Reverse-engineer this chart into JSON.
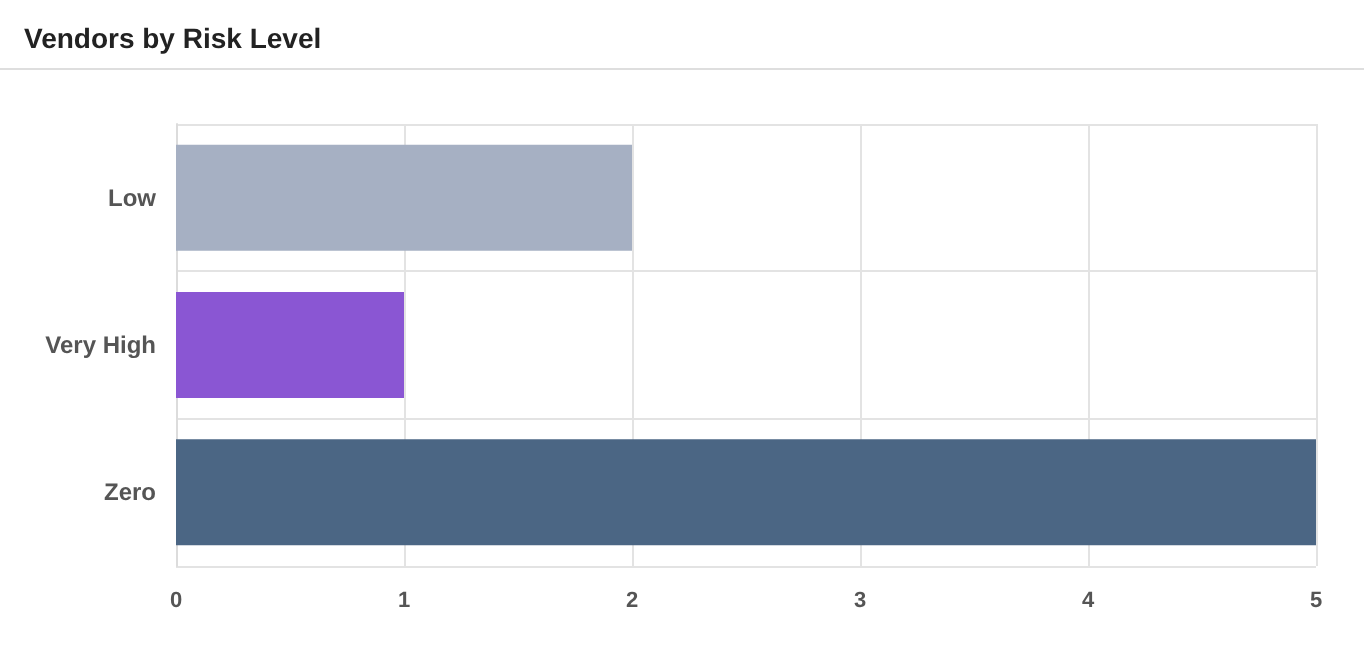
{
  "chart_data": {
    "type": "bar",
    "title": "Vendors by Risk Level",
    "orientation": "horizontal",
    "categories": [
      "Low",
      "Very High",
      "Zero"
    ],
    "values": [
      2,
      1,
      5
    ],
    "colors": [
      "#a6b0c3",
      "#8a56d3",
      "#4b6684"
    ],
    "xlim": [
      0,
      5
    ],
    "xticks": [
      0,
      1,
      2,
      3,
      4,
      5
    ],
    "grid": true
  }
}
